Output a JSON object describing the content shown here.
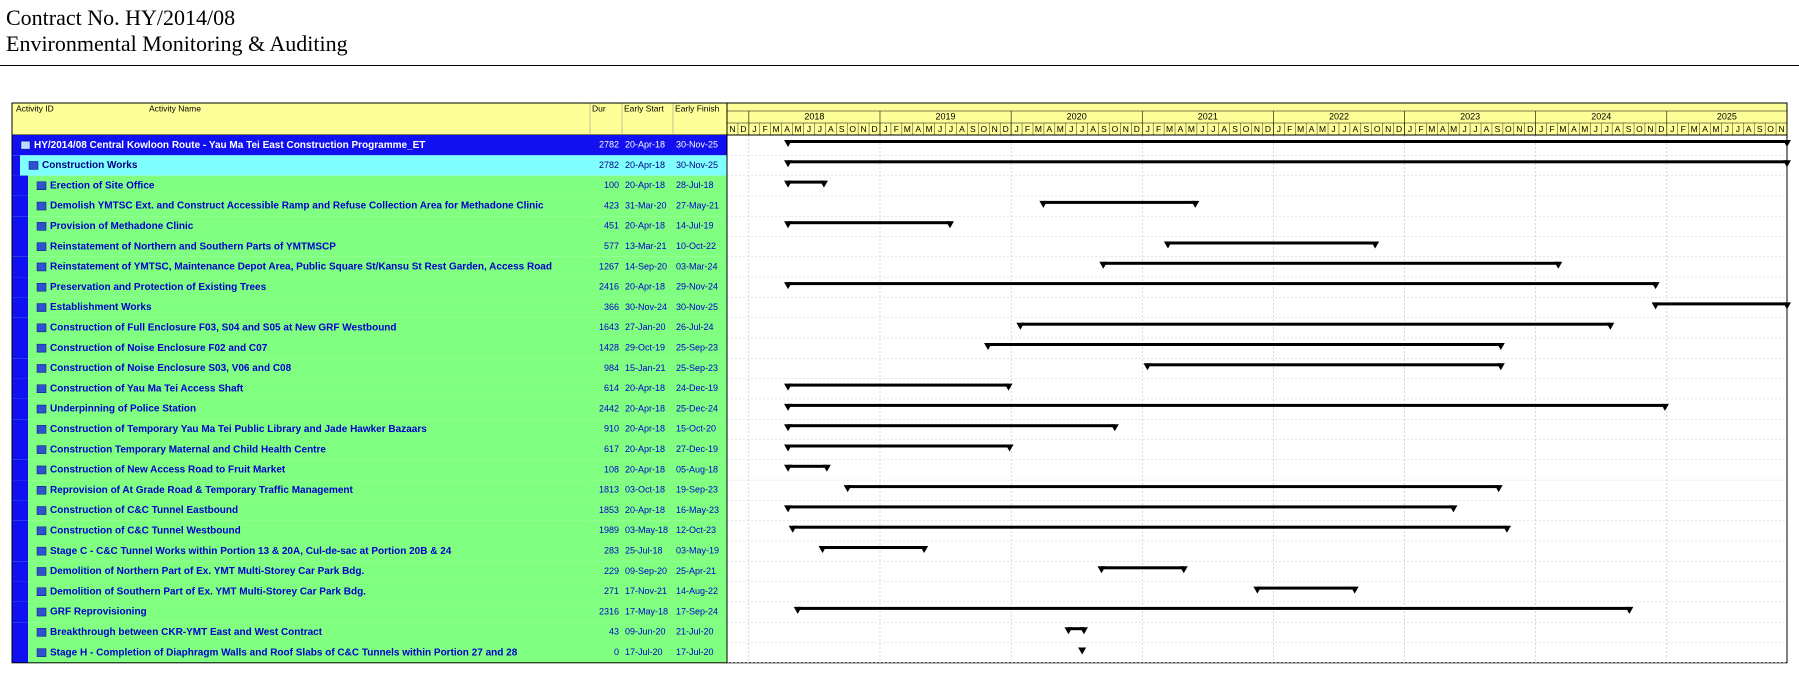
{
  "header": {
    "contract": "Contract No. HY/2014/08",
    "title": "Environmental Monitoring & Auditing"
  },
  "table": {
    "columns": [
      "Activity ID",
      "Activity Name",
      "Dur",
      "Early Start",
      "Early Finish"
    ],
    "rows": [
      {
        "name": "HY/2014/08 Central Kowloon Route - Yau Ma Tei East Construction Programme_ET",
        "dur": 2782,
        "start": "20-Apr-18",
        "finish": "30-Nov-25"
      },
      {
        "name": "Construction Works",
        "dur": 2782,
        "start": "20-Apr-18",
        "finish": "30-Nov-25"
      },
      {
        "name": "Erection of Site Office",
        "dur": 100,
        "start": "20-Apr-18",
        "finish": "28-Jul-18"
      },
      {
        "name": "Demolish YMTSC Ext. and Construct Accessible Ramp and Refuse Collection Area for Methadone Clinic",
        "dur": 423,
        "start": "31-Mar-20",
        "finish": "27-May-21"
      },
      {
        "name": "Provision of Methadone Clinic",
        "dur": 451,
        "start": "20-Apr-18",
        "finish": "14-Jul-19"
      },
      {
        "name": "Reinstatement of Northern and Southern Parts of YMTMSCP",
        "dur": 577,
        "start": "13-Mar-21",
        "finish": "10-Oct-22"
      },
      {
        "name": "Reinstatement of YMTSC, Maintenance Depot Area, Public Square St/Kansu St Rest Garden, Access Road",
        "dur": 1267,
        "start": "14-Sep-20",
        "finish": "03-Mar-24"
      },
      {
        "name": "Preservation and Protection of Existing Trees",
        "dur": 2416,
        "start": "20-Apr-18",
        "finish": "29-Nov-24"
      },
      {
        "name": "Establishment Works",
        "dur": 366,
        "start": "30-Nov-24",
        "finish": "30-Nov-25"
      },
      {
        "name": "Construction of Full Enclosure F03, S04 and S05 at New GRF Westbound",
        "dur": 1643,
        "start": "27-Jan-20",
        "finish": "26-Jul-24"
      },
      {
        "name": "Construction of Noise Enclosure F02 and C07",
        "dur": 1428,
        "start": "29-Oct-19",
        "finish": "25-Sep-23"
      },
      {
        "name": "Construction of Noise Enclosure S03, V06 and C08",
        "dur": 984,
        "start": "15-Jan-21",
        "finish": "25-Sep-23"
      },
      {
        "name": "Construction of Yau Ma Tei Access Shaft",
        "dur": 614,
        "start": "20-Apr-18",
        "finish": "24-Dec-19"
      },
      {
        "name": "Underpinning of Police Station",
        "dur": 2442,
        "start": "20-Apr-18",
        "finish": "25-Dec-24"
      },
      {
        "name": "Construction of Temporary Yau Ma Tei Public Library and Jade Hawker Bazaars",
        "dur": 910,
        "start": "20-Apr-18",
        "finish": "15-Oct-20"
      },
      {
        "name": "Construction Temporary Maternal and Child Health Centre",
        "dur": 617,
        "start": "20-Apr-18",
        "finish": "27-Dec-19"
      },
      {
        "name": "Construction of New Access Road to Fruit Market",
        "dur": 108,
        "start": "20-Apr-18",
        "finish": "05-Aug-18"
      },
      {
        "name": "Reprovision of At Grade Road & Temporary Traffic Management",
        "dur": 1813,
        "start": "03-Oct-18",
        "finish": "19-Sep-23"
      },
      {
        "name": "Construction of C&C Tunnel Eastbound",
        "dur": 1853,
        "start": "20-Apr-18",
        "finish": "16-May-23"
      },
      {
        "name": "Construction of C&C Tunnel Westbound",
        "dur": 1989,
        "start": "03-May-18",
        "finish": "12-Oct-23"
      },
      {
        "name": "Stage C - C&C Tunnel Works within Portion 13 & 20A, Cul-de-sac at Portion 20B & 24",
        "dur": 283,
        "start": "25-Jul-18",
        "finish": "03-May-19"
      },
      {
        "name": "Demolition of Northern Part of Ex. YMT Multi-Storey Car Park Bdg.",
        "dur": 229,
        "start": "09-Sep-20",
        "finish": "25-Apr-21"
      },
      {
        "name": "Demolition of Southern Part of Ex. YMT Multi-Storey Car Park Bdg.",
        "dur": 271,
        "start": "17-Nov-21",
        "finish": "14-Aug-22"
      },
      {
        "name": "GRF Reprovisioning",
        "dur": 2316,
        "start": "17-May-18",
        "finish": "17-Sep-24"
      },
      {
        "name": "Breakthrough between CKR-YMT East and West Contract",
        "dur": 43,
        "start": "09-Jun-20",
        "finish": "21-Jul-20"
      },
      {
        "name": "Stage H - Completion of Diaphragm Walls and Roof Slabs of C&C Tunnels within Portion 27 and 28",
        "dur": 0,
        "start": "17-Jul-20",
        "finish": "17-Jul-20"
      }
    ]
  },
  "timeline": {
    "years": [
      "2018",
      "2019",
      "2020",
      "2021",
      "2022",
      "2023",
      "2024",
      "2025"
    ],
    "months": [
      "N",
      "D",
      "J",
      "F",
      "M",
      "A",
      "M",
      "J",
      "J",
      "A",
      "S",
      "O",
      "N",
      "D",
      "J",
      "F",
      "M",
      "A",
      "M",
      "J",
      "J",
      "A",
      "S",
      "O",
      "N",
      "D",
      "J",
      "F",
      "M",
      "A",
      "M",
      "J",
      "J",
      "A",
      "S",
      "O",
      "N",
      "D",
      "J",
      "F",
      "M",
      "A",
      "M",
      "J",
      "J",
      "A",
      "S",
      "O",
      "N",
      "D",
      "J",
      "F",
      "M",
      "A",
      "M",
      "J",
      "J",
      "A",
      "S",
      "O",
      "N",
      "D",
      "J",
      "F",
      "M",
      "A",
      "M",
      "J",
      "J",
      "A",
      "S",
      "O",
      "N",
      "D",
      "J",
      "F",
      "M",
      "A",
      "M",
      "J",
      "J",
      "A",
      "S",
      "O",
      "N",
      "D",
      "J",
      "F",
      "M",
      "A",
      "M",
      "J",
      "J",
      "A",
      "S",
      "O",
      "N"
    ]
  }
}
